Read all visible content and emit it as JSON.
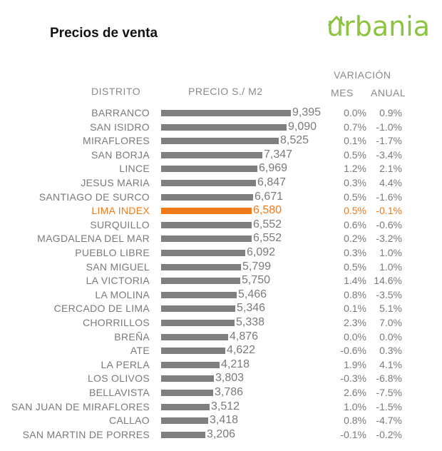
{
  "title": "Precios de venta",
  "logo": {
    "text": "urbania",
    "color": "#8cc43f"
  },
  "headers": {
    "distrito": "DISTRITO",
    "precio": "PRECIO S./ M2",
    "variacion": "VARIACIÓN",
    "mes": "MES",
    "anual": "ANUAL"
  },
  "colors": {
    "bar": "#7f7f7f",
    "highlight": "#f07a1a",
    "text": "#7a7a7a"
  },
  "chart_data": {
    "type": "bar",
    "orientation": "horizontal",
    "highlight": "LIMA INDEX",
    "rows": [
      {
        "district": "BARRANCO",
        "price": "9,395",
        "value": 9395,
        "mes": "0.0%",
        "anual": "0.9%"
      },
      {
        "district": "SAN ISIDRO",
        "price": "9,090",
        "value": 9090,
        "mes": "0.7%",
        "anual": "-1.0%"
      },
      {
        "district": "MIRAFLORES",
        "price": "8,525",
        "value": 8525,
        "mes": "0.1%",
        "anual": "-1.7%"
      },
      {
        "district": "SAN BORJA",
        "price": "7,347",
        "value": 7347,
        "mes": "0.5%",
        "anual": "-3.4%"
      },
      {
        "district": "LINCE",
        "price": "6,969",
        "value": 6969,
        "mes": "1.2%",
        "anual": "2.1%"
      },
      {
        "district": "JESUS MARIA",
        "price": "6,847",
        "value": 6847,
        "mes": "0.3%",
        "anual": "4.4%"
      },
      {
        "district": "SANTIAGO DE SURCO",
        "price": "6,671",
        "value": 6671,
        "mes": "0.5%",
        "anual": "-1.6%"
      },
      {
        "district": "LIMA INDEX",
        "price": "6,580",
        "value": 6580,
        "mes": "0.5%",
        "anual": "-0.1%"
      },
      {
        "district": "SURQUILLO",
        "price": "6,552",
        "value": 6552,
        "mes": "0.6%",
        "anual": "-0.6%"
      },
      {
        "district": "MAGDALENA DEL MAR",
        "price": "6,552",
        "value": 6552,
        "mes": "0.2%",
        "anual": "-3.2%"
      },
      {
        "district": "PUEBLO LIBRE",
        "price": "6,092",
        "value": 6092,
        "mes": "0.3%",
        "anual": "1.0%"
      },
      {
        "district": "SAN MIGUEL",
        "price": "5,799",
        "value": 5799,
        "mes": "0.5%",
        "anual": "1.0%"
      },
      {
        "district": "LA VICTORIA",
        "price": "5,750",
        "value": 5750,
        "mes": "1.4%",
        "anual": "14.6%"
      },
      {
        "district": "LA MOLINA",
        "price": "5,466",
        "value": 5466,
        "mes": "0.8%",
        "anual": "-3.5%"
      },
      {
        "district": "CERCADO DE LIMA",
        "price": "5,346",
        "value": 5346,
        "mes": "0.1%",
        "anual": "5.1%"
      },
      {
        "district": "CHORRILLOS",
        "price": "5,338",
        "value": 5338,
        "mes": "2.3%",
        "anual": "7.0%"
      },
      {
        "district": "BREÑA",
        "price": "4,876",
        "value": 4876,
        "mes": "0.0%",
        "anual": "0.0%"
      },
      {
        "district": "ATE",
        "price": "4,622",
        "value": 4622,
        "mes": "-0.6%",
        "anual": "0.3%"
      },
      {
        "district": "LA PERLA",
        "price": "4,218",
        "value": 4218,
        "mes": "1.9%",
        "anual": "4.1%"
      },
      {
        "district": "LOS OLIVOS",
        "price": "3,803",
        "value": 3803,
        "mes": "-0.3%",
        "anual": "-6.8%"
      },
      {
        "district": "BELLAVISTA",
        "price": "3,786",
        "value": 3786,
        "mes": "2.6%",
        "anual": "-7.5%"
      },
      {
        "district": "SAN JUAN DE MIRAFLORES",
        "price": "3,512",
        "value": 3512,
        "mes": "1.0%",
        "anual": "-1.5%"
      },
      {
        "district": "CALLAO",
        "price": "3,418",
        "value": 3418,
        "mes": "0.8%",
        "anual": "-4.7%"
      },
      {
        "district": "SAN MARTIN DE PORRES",
        "price": "3,206",
        "value": 3206,
        "mes": "-0.1%",
        "anual": "-0.2%"
      }
    ]
  }
}
